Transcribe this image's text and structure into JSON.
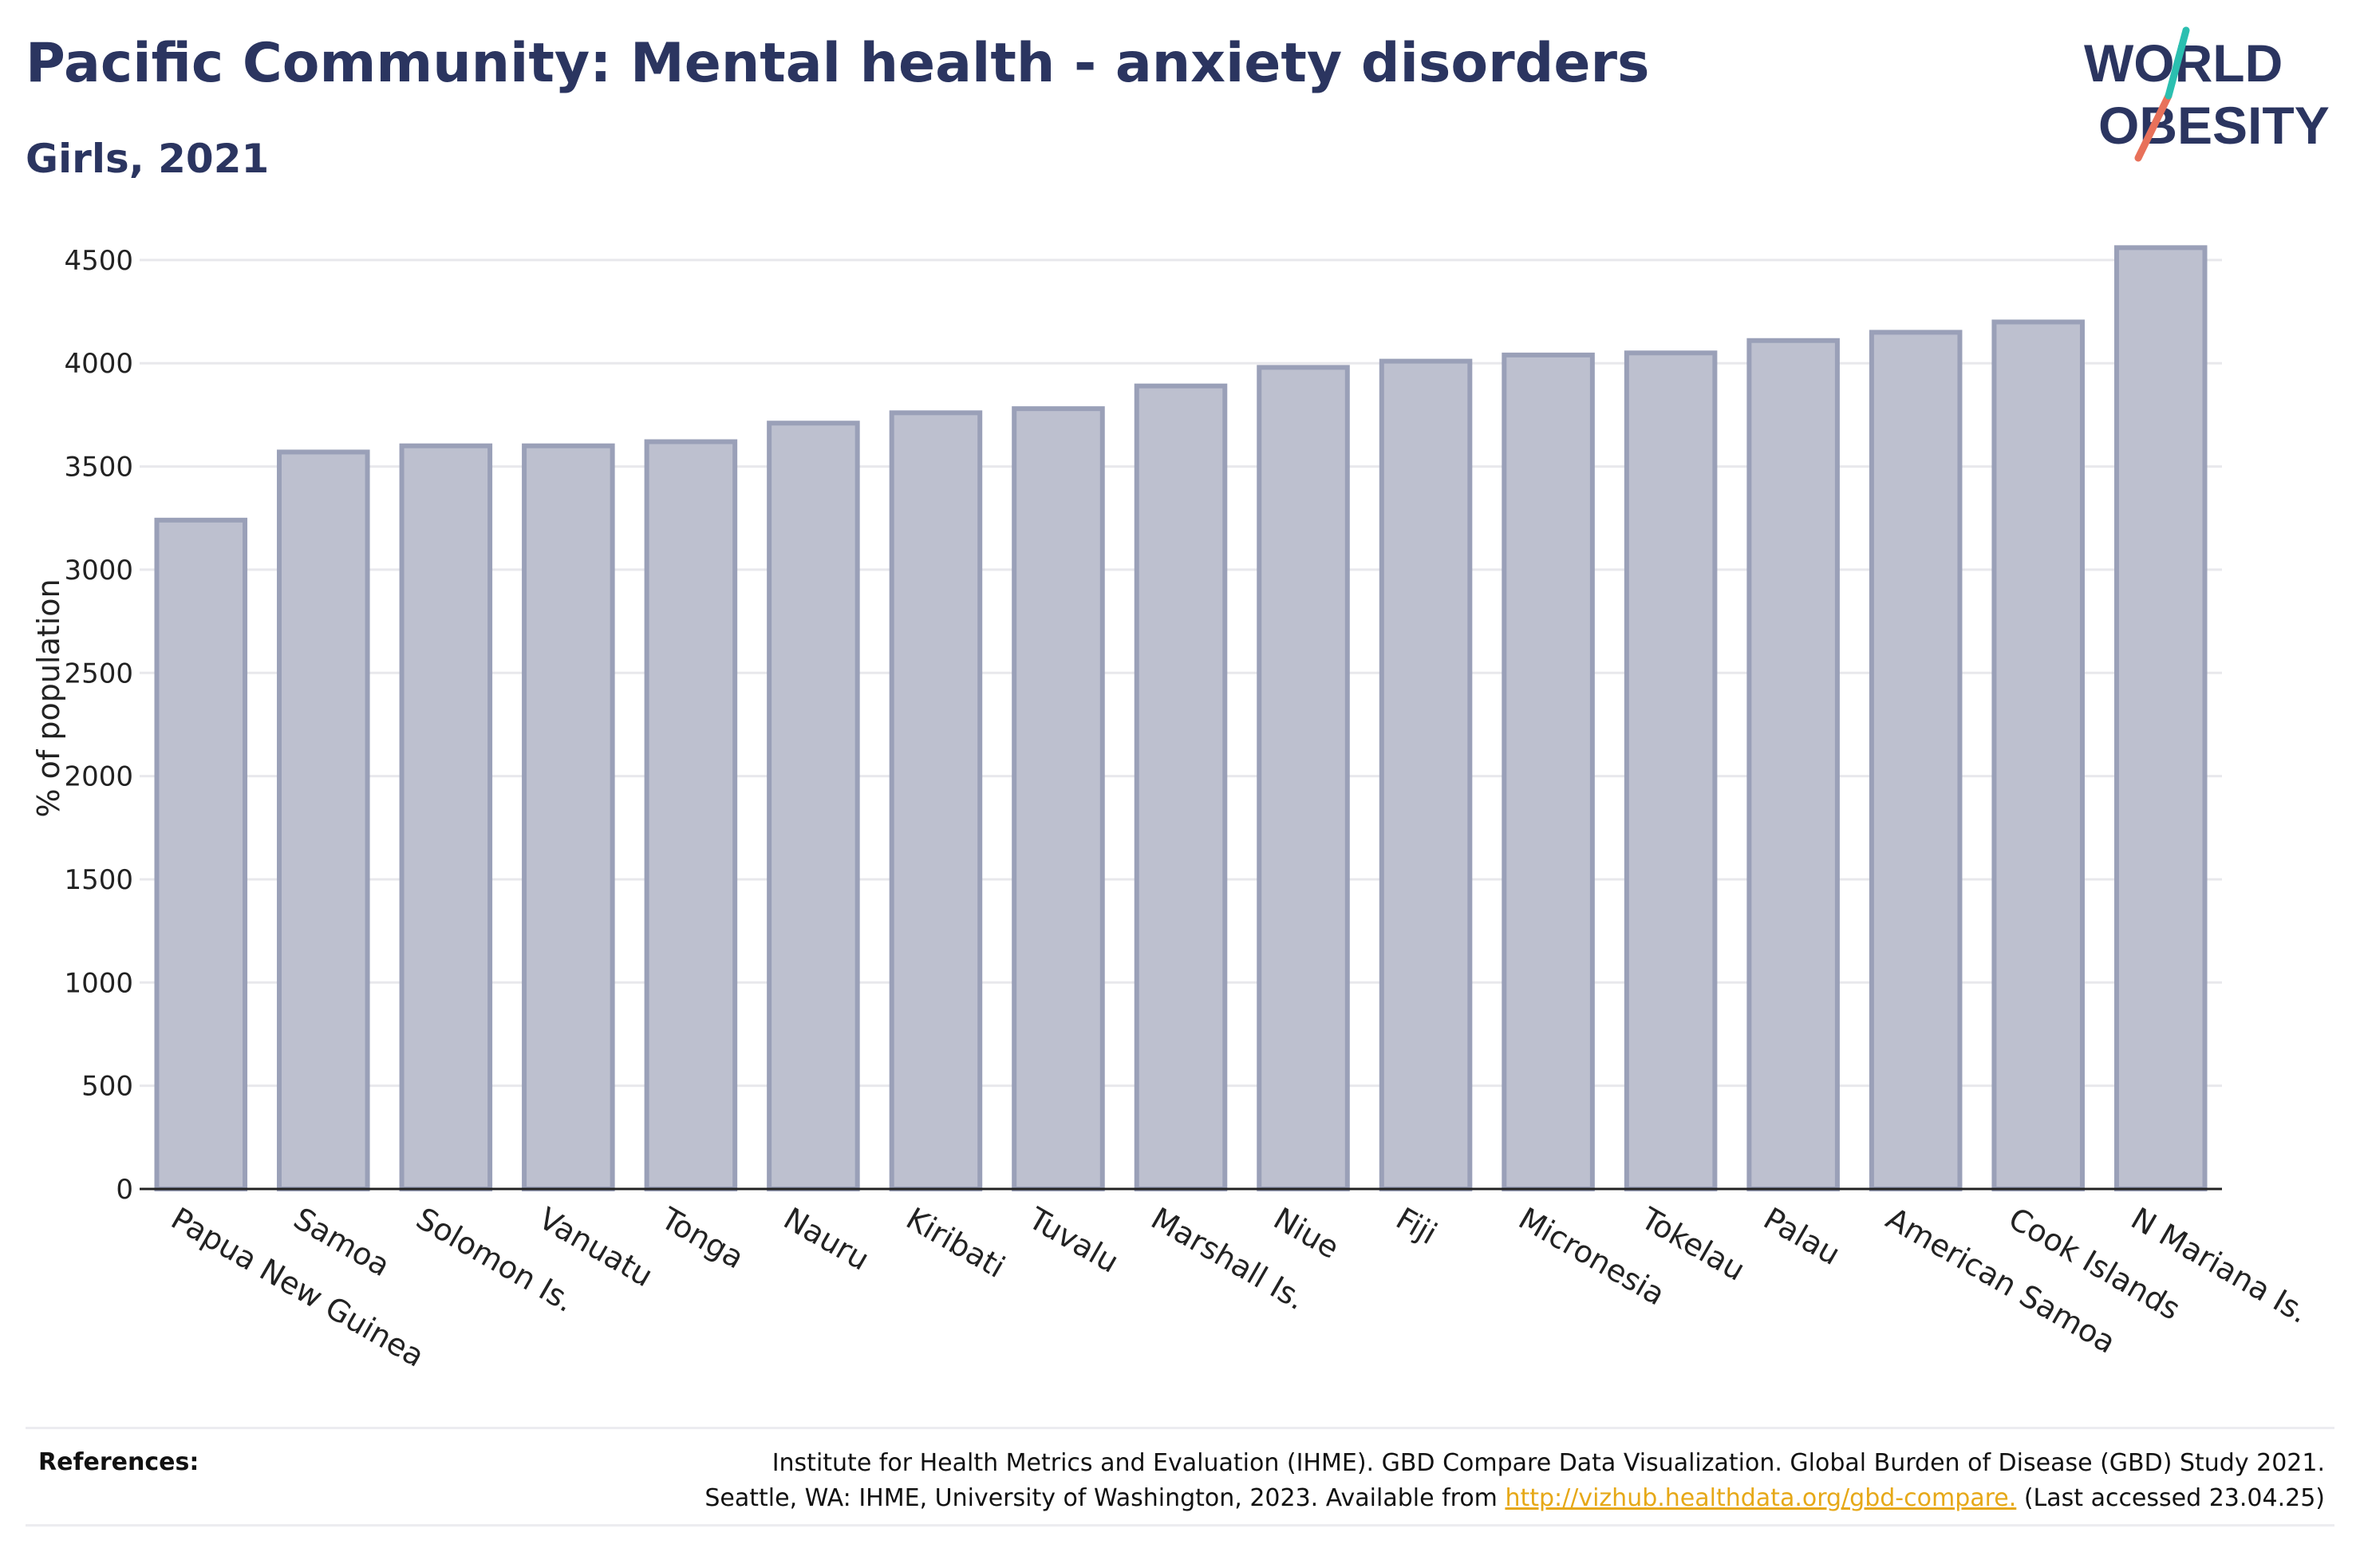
{
  "title": "Pacific Community: Mental health - anxiety disorders",
  "subtitle": "Girls, 2021",
  "logo": {
    "line1": "WORLD",
    "line2": "OBESITY"
  },
  "colors": {
    "title": "#2b3560",
    "bar_fill": "#bdc0cf",
    "bar_stroke": "#9aa0b8",
    "grid": "#e8e8ec",
    "axis": "#222222",
    "link": "#e6a817",
    "logo_slash_teal": "#2bbfb0",
    "logo_slash_coral": "#e8715a"
  },
  "chart_data": {
    "type": "bar",
    "title": "",
    "xlabel": "",
    "ylabel": "% of population",
    "ylim": [
      0,
      4600
    ],
    "yticks": [
      0,
      500,
      1000,
      1500,
      2000,
      2500,
      3000,
      3500,
      4000,
      4500
    ],
    "grid": true,
    "categories": [
      "Papua New Guinea",
      "Samoa",
      "Solomon Is.",
      "Vanuatu",
      "Tonga",
      "Nauru",
      "Kiribati",
      "Tuvalu",
      "Marshall Is.",
      "Niue",
      "Fiji",
      "Micronesia",
      "Tokelau",
      "Palau",
      "American Samoa",
      "Cook Islands",
      "N Mariana Is."
    ],
    "values": [
      3240,
      3570,
      3600,
      3600,
      3620,
      3710,
      3760,
      3780,
      3890,
      3980,
      4010,
      4040,
      4050,
      4110,
      4150,
      4200,
      4560
    ]
  },
  "references": {
    "label": "References:",
    "line1": "Institute for Health Metrics and Evaluation (IHME). GBD Compare Data Visualization. Global Burden of Disease (GBD) Study 2021.",
    "line2_prefix": "Seattle, WA: IHME, University of Washington, 2023. Available from ",
    "link_text": "http://vizhub.healthdata.org/gbd-compare.",
    "line2_suffix": " (Last accessed 23.04.25)"
  }
}
